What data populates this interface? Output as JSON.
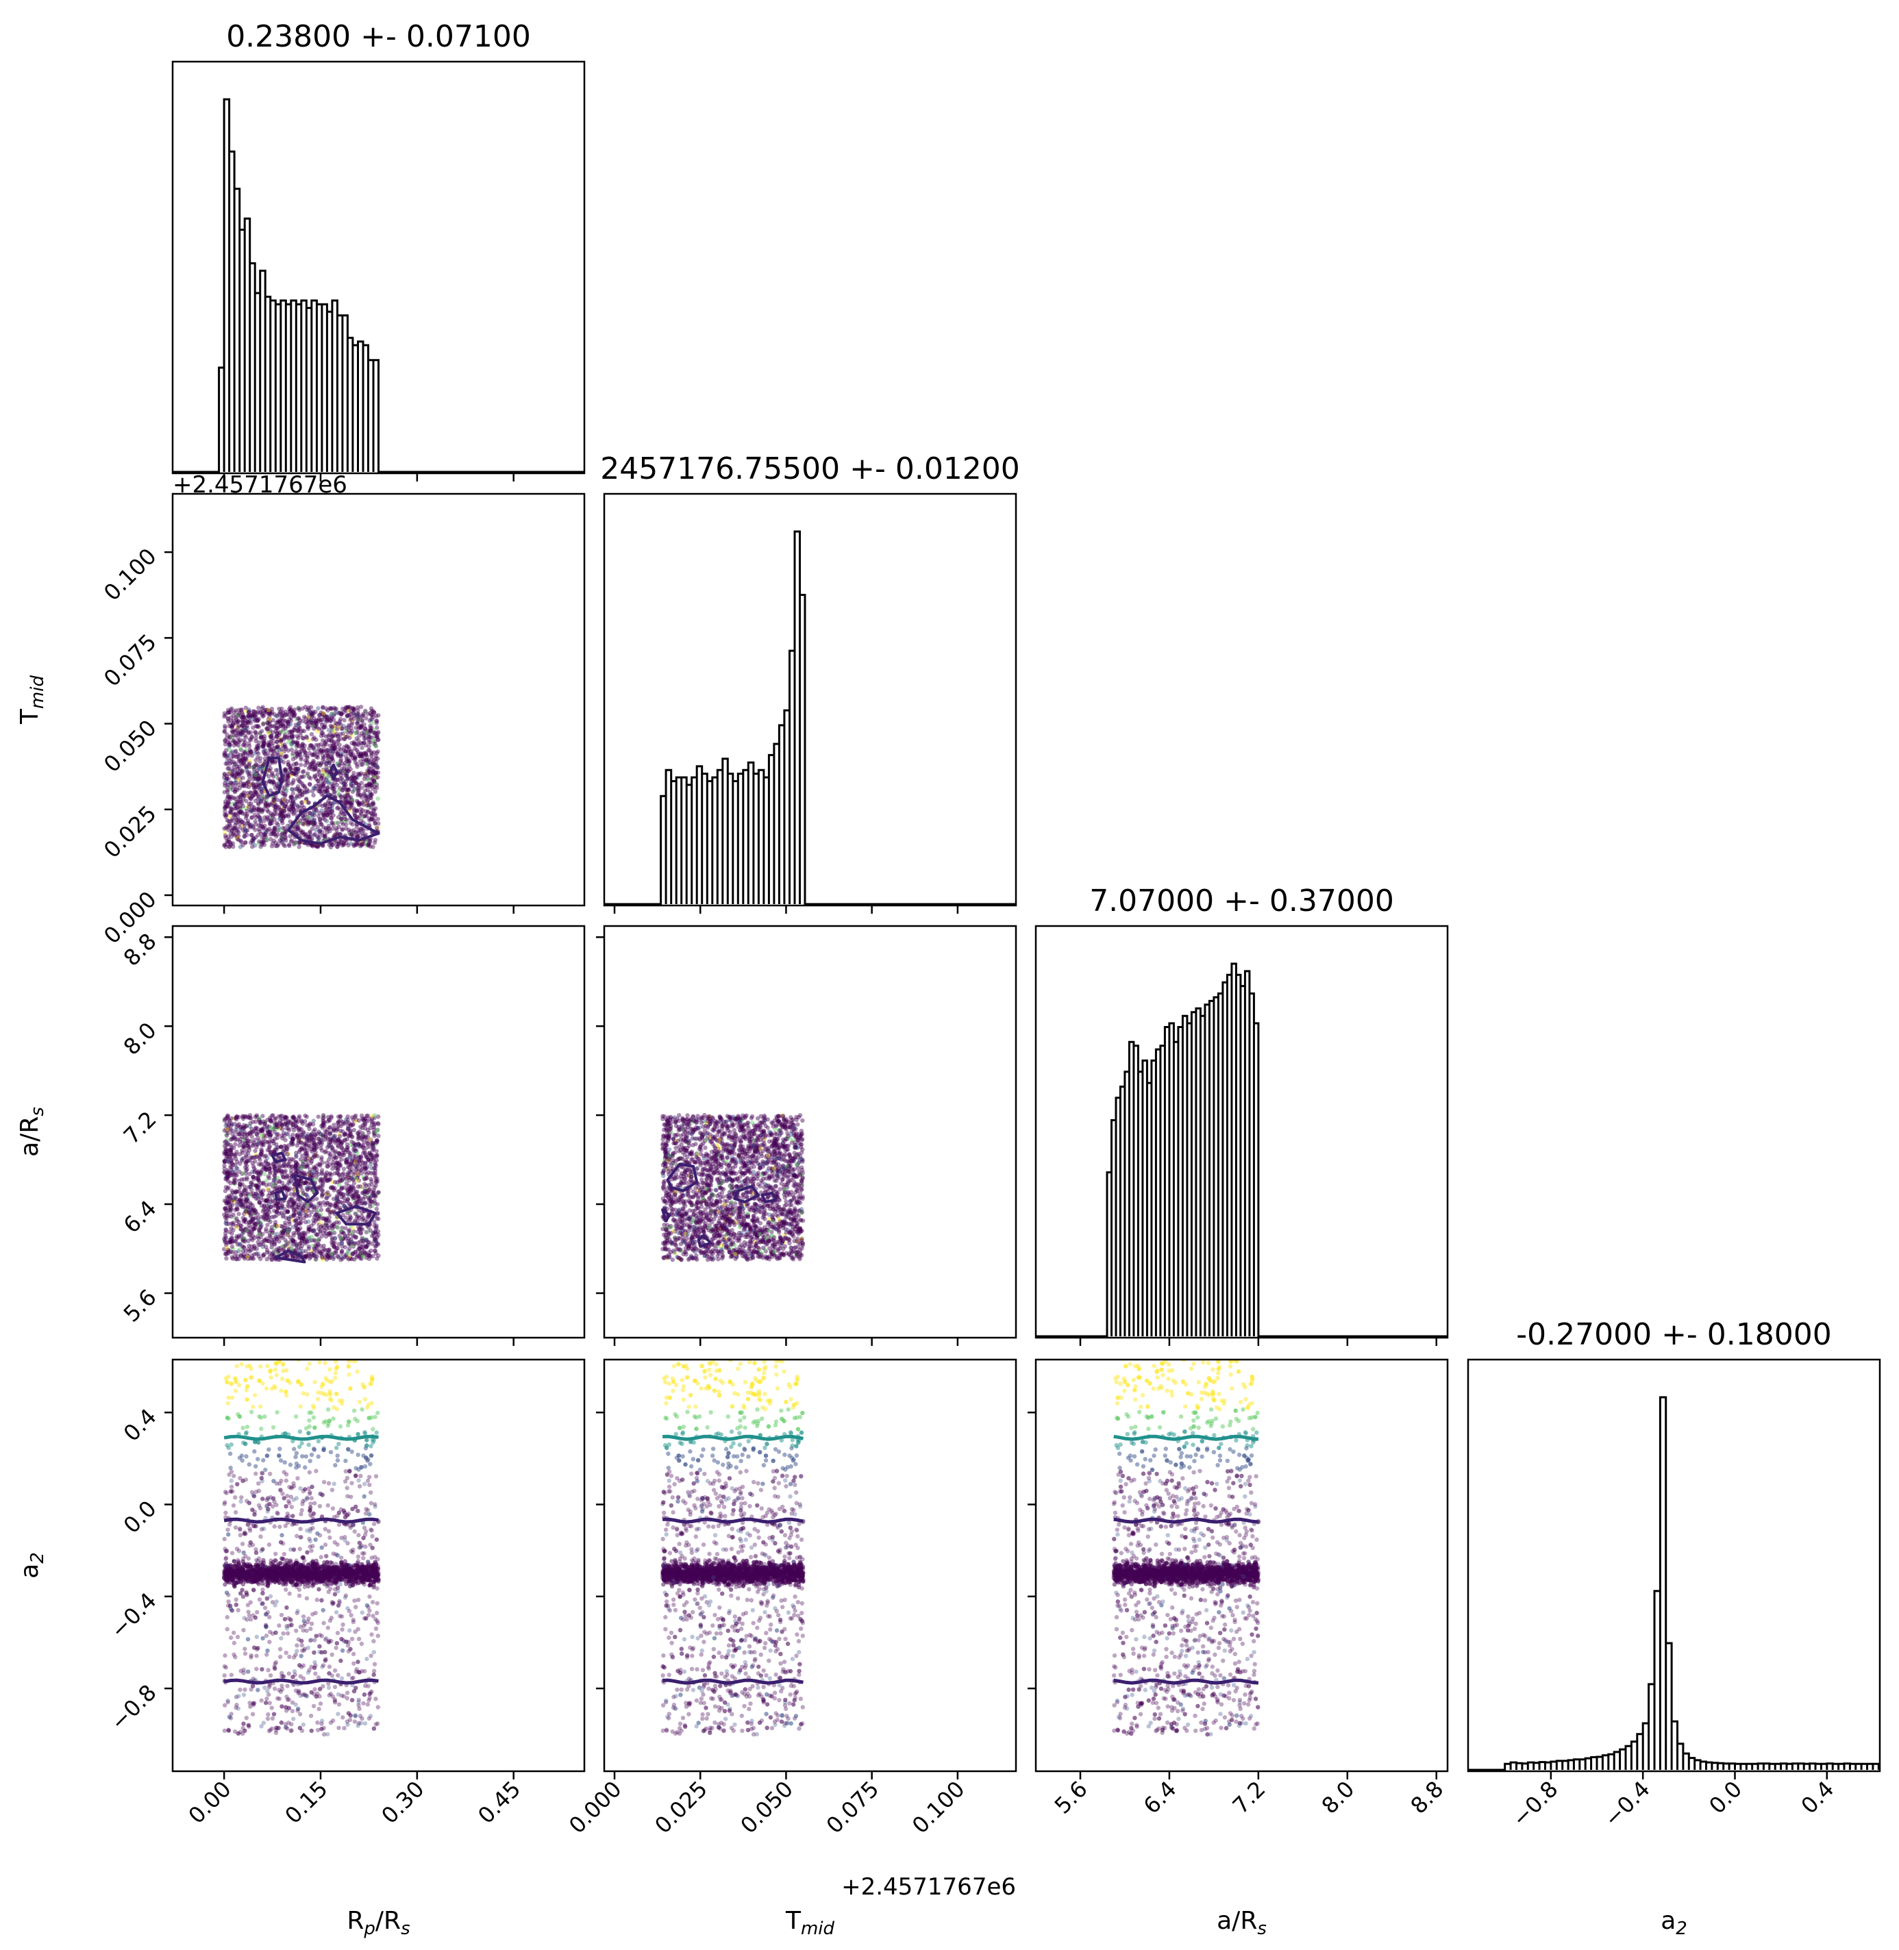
{
  "chart_data": {
    "type": "corner",
    "parameters": [
      {
        "key": "rp",
        "label": "R",
        "label_sub": "p",
        "label_tail": "/R",
        "label_tail_sub": "s",
        "title": "0.23800 +- 0.07100",
        "range": [
          -0.08,
          0.56
        ],
        "ticks": [
          0.0,
          0.15,
          0.3,
          0.45
        ],
        "tick_labels": [
          "0.00",
          "0.15",
          "0.30",
          "0.45"
        ],
        "offset": ""
      },
      {
        "key": "tmid",
        "label": "T",
        "label_sub": "mid",
        "label_tail": "",
        "label_tail_sub": "",
        "title": "2457176.75500 +- 0.01200",
        "range": [
          -0.003,
          0.117
        ],
        "ticks": [
          0.0,
          0.025,
          0.05,
          0.075,
          0.1
        ],
        "tick_labels": [
          "0.000",
          "0.025",
          "0.050",
          "0.075",
          "0.100"
        ],
        "offset": "+2.4571767e6"
      },
      {
        "key": "ars",
        "label": "a/R",
        "label_sub": "s",
        "label_tail": "",
        "label_tail_sub": "",
        "title": "7.07000 +- 0.37000",
        "range": [
          5.2,
          8.9
        ],
        "ticks": [
          5.6,
          6.4,
          7.2,
          8.0,
          8.8
        ],
        "tick_labels": [
          "5.6",
          "6.4",
          "7.2",
          "8.0",
          "8.8"
        ],
        "offset": ""
      },
      {
        "key": "a2",
        "label": "a",
        "label_sub": "2",
        "label_tail": "",
        "label_tail_sub": "",
        "title": "-0.27000 +- 0.18000",
        "range": [
          -1.16,
          0.63
        ],
        "ticks": [
          -0.8,
          -0.4,
          0.0,
          0.4
        ],
        "tick_labels": [
          "−0.8",
          "−0.4",
          "0.0",
          "0.4"
        ],
        "offset": ""
      }
    ],
    "histograms": [
      {
        "param": "rp",
        "bin_width": 0.008,
        "counts": [
          [
            -0.008,
            0.28
          ],
          [
            0.0,
            1.0
          ],
          [
            0.008,
            0.86
          ],
          [
            0.016,
            0.76
          ],
          [
            0.024,
            0.65
          ],
          [
            0.032,
            0.68
          ],
          [
            0.04,
            0.56
          ],
          [
            0.048,
            0.48
          ],
          [
            0.056,
            0.54
          ],
          [
            0.064,
            0.47
          ],
          [
            0.072,
            0.46
          ],
          [
            0.08,
            0.45
          ],
          [
            0.088,
            0.46
          ],
          [
            0.096,
            0.45
          ],
          [
            0.104,
            0.46
          ],
          [
            0.112,
            0.45
          ],
          [
            0.12,
            0.46
          ],
          [
            0.128,
            0.44
          ],
          [
            0.136,
            0.46
          ],
          [
            0.144,
            0.45
          ],
          [
            0.152,
            0.45
          ],
          [
            0.16,
            0.43
          ],
          [
            0.168,
            0.46
          ],
          [
            0.176,
            0.42
          ],
          [
            0.184,
            0.42
          ],
          [
            0.192,
            0.36
          ],
          [
            0.2,
            0.34
          ],
          [
            0.208,
            0.35
          ],
          [
            0.216,
            0.34
          ],
          [
            0.224,
            0.3
          ],
          [
            0.232,
            0.3
          ],
          [
            0.24,
            0.0
          ]
        ]
      },
      {
        "param": "tmid",
        "bin_width": 0.0015,
        "counts": [
          [
            0.0135,
            0.29
          ],
          [
            0.015,
            0.36
          ],
          [
            0.0165,
            0.33
          ],
          [
            0.018,
            0.34
          ],
          [
            0.0195,
            0.34
          ],
          [
            0.021,
            0.32
          ],
          [
            0.0225,
            0.34
          ],
          [
            0.024,
            0.37
          ],
          [
            0.0255,
            0.35
          ],
          [
            0.027,
            0.33
          ],
          [
            0.0285,
            0.34
          ],
          [
            0.03,
            0.36
          ],
          [
            0.0315,
            0.39
          ],
          [
            0.033,
            0.35
          ],
          [
            0.0345,
            0.33
          ],
          [
            0.036,
            0.35
          ],
          [
            0.0375,
            0.36
          ],
          [
            0.039,
            0.38
          ],
          [
            0.0405,
            0.35
          ],
          [
            0.042,
            0.36
          ],
          [
            0.0435,
            0.34
          ],
          [
            0.045,
            0.4
          ],
          [
            0.0465,
            0.43
          ],
          [
            0.048,
            0.48
          ],
          [
            0.0495,
            0.52
          ],
          [
            0.051,
            0.68
          ],
          [
            0.0525,
            1.0
          ],
          [
            0.054,
            0.83
          ]
        ]
      },
      {
        "param": "ars",
        "bin_width": 0.04,
        "counts": [
          [
            5.84,
            0.44
          ],
          [
            5.88,
            0.58
          ],
          [
            5.92,
            0.64
          ],
          [
            5.96,
            0.67
          ],
          [
            6.0,
            0.71
          ],
          [
            6.04,
            0.79
          ],
          [
            6.08,
            0.78
          ],
          [
            6.12,
            0.71
          ],
          [
            6.16,
            0.74
          ],
          [
            6.2,
            0.68
          ],
          [
            6.24,
            0.74
          ],
          [
            6.28,
            0.77
          ],
          [
            6.32,
            0.78
          ],
          [
            6.36,
            0.83
          ],
          [
            6.4,
            0.84
          ],
          [
            6.44,
            0.79
          ],
          [
            6.48,
            0.83
          ],
          [
            6.52,
            0.86
          ],
          [
            6.56,
            0.84
          ],
          [
            6.6,
            0.87
          ],
          [
            6.64,
            0.88
          ],
          [
            6.68,
            0.86
          ],
          [
            6.72,
            0.89
          ],
          [
            6.76,
            0.9
          ],
          [
            6.8,
            0.91
          ],
          [
            6.84,
            0.92
          ],
          [
            6.88,
            0.95
          ],
          [
            6.92,
            0.97
          ],
          [
            6.96,
            1.0
          ],
          [
            7.0,
            0.97
          ],
          [
            7.04,
            0.94
          ],
          [
            7.08,
            0.98
          ],
          [
            7.12,
            0.92
          ],
          [
            7.16,
            0.84
          ]
        ]
      },
      {
        "param": "a2",
        "bin_width": 0.025,
        "counts": [
          [
            -1.0,
            0.016
          ],
          [
            -0.975,
            0.02
          ],
          [
            -0.95,
            0.018
          ],
          [
            -0.925,
            0.017
          ],
          [
            -0.9,
            0.02
          ],
          [
            -0.875,
            0.019
          ],
          [
            -0.85,
            0.021
          ],
          [
            -0.825,
            0.02
          ],
          [
            -0.8,
            0.022
          ],
          [
            -0.775,
            0.024
          ],
          [
            -0.75,
            0.024
          ],
          [
            -0.725,
            0.026
          ],
          [
            -0.7,
            0.028
          ],
          [
            -0.675,
            0.028
          ],
          [
            -0.65,
            0.031
          ],
          [
            -0.625,
            0.034
          ],
          [
            -0.6,
            0.035
          ],
          [
            -0.575,
            0.039
          ],
          [
            -0.55,
            0.042
          ],
          [
            -0.525,
            0.048
          ],
          [
            -0.5,
            0.055
          ],
          [
            -0.475,
            0.064
          ],
          [
            -0.45,
            0.076
          ],
          [
            -0.425,
            0.096
          ],
          [
            -0.4,
            0.125
          ],
          [
            -0.375,
            0.23
          ],
          [
            -0.35,
            0.48
          ],
          [
            -0.325,
            1.0
          ],
          [
            -0.3,
            0.34
          ],
          [
            -0.275,
            0.13
          ],
          [
            -0.25,
            0.07
          ],
          [
            -0.225,
            0.044
          ],
          [
            -0.2,
            0.032
          ],
          [
            -0.175,
            0.026
          ],
          [
            -0.15,
            0.022
          ],
          [
            -0.125,
            0.02
          ],
          [
            -0.1,
            0.019
          ],
          [
            -0.075,
            0.018
          ],
          [
            -0.05,
            0.017
          ],
          [
            -0.025,
            0.017
          ],
          [
            0.0,
            0.016
          ],
          [
            0.025,
            0.016
          ],
          [
            0.05,
            0.016
          ],
          [
            0.075,
            0.016
          ],
          [
            0.1,
            0.017
          ],
          [
            0.125,
            0.017
          ],
          [
            0.15,
            0.016
          ],
          [
            0.175,
            0.016
          ],
          [
            0.2,
            0.017
          ],
          [
            0.225,
            0.016
          ],
          [
            0.25,
            0.017
          ],
          [
            0.275,
            0.017
          ],
          [
            0.3,
            0.016
          ],
          [
            0.325,
            0.017
          ],
          [
            0.35,
            0.016
          ],
          [
            0.375,
            0.016
          ],
          [
            0.4,
            0.017
          ],
          [
            0.425,
            0.016
          ],
          [
            0.45,
            0.016
          ],
          [
            0.475,
            0.017
          ],
          [
            0.5,
            0.016
          ],
          [
            0.525,
            0.016
          ],
          [
            0.55,
            0.016
          ],
          [
            0.575,
            0.016
          ],
          [
            0.6,
            0.016
          ],
          [
            0.625,
            0.016
          ]
        ]
      }
    ],
    "scatter_extents": {
      "rp": [
        0.0,
        0.24
      ],
      "tmid": [
        0.014,
        0.055
      ],
      "ars": [
        5.9,
        7.2
      ],
      "a2_band": [
        -1.0,
        0.63
      ],
      "a2_dense_center": -0.3,
      "a2_dense_halfwidth": 0.035
    },
    "contours": {
      "rp_vs_tmid": [
        {
          "color": "#3b1f6f",
          "points": [
            [
              0.06,
              0.033
            ],
            [
              0.07,
              0.04
            ],
            [
              0.085,
              0.04
            ],
            [
              0.09,
              0.034
            ],
            [
              0.085,
              0.03
            ],
            [
              0.07,
              0.029
            ]
          ]
        },
        {
          "color": "#3b1f6f",
          "points": [
            [
              0.165,
              0.036
            ],
            [
              0.17,
              0.038
            ],
            [
              0.175,
              0.036
            ],
            [
              0.17,
              0.034
            ]
          ]
        },
        {
          "color": "#3b1f6f",
          "points": [
            [
              0.1,
              0.019
            ],
            [
              0.12,
              0.024
            ],
            [
              0.14,
              0.026
            ],
            [
              0.16,
              0.029
            ],
            [
              0.18,
              0.027
            ],
            [
              0.2,
              0.022
            ],
            [
              0.22,
              0.02
            ],
            [
              0.24,
              0.018
            ],
            [
              0.21,
              0.016
            ],
            [
              0.18,
              0.017
            ],
            [
              0.15,
              0.015
            ],
            [
              0.12,
              0.016
            ]
          ]
        }
      ],
      "rp_vs_ars": [
        {
          "color": "#3b1f6f",
          "points": [
            [
              0.11,
              6.66
            ],
            [
              0.135,
              6.62
            ],
            [
              0.145,
              6.5
            ],
            [
              0.13,
              6.42
            ],
            [
              0.115,
              6.48
            ]
          ]
        },
        {
          "color": "#3b1f6f",
          "points": [
            [
              0.175,
              6.32
            ],
            [
              0.205,
              6.38
            ],
            [
              0.235,
              6.32
            ],
            [
              0.225,
              6.22
            ],
            [
              0.19,
              6.22
            ]
          ]
        },
        {
          "color": "#3b1f6f",
          "points": [
            [
              0.075,
              6.84
            ],
            [
              0.09,
              6.86
            ],
            [
              0.095,
              6.8
            ],
            [
              0.08,
              6.78
            ]
          ]
        },
        {
          "color": "#3b1f6f",
          "points": [
            [
              0.08,
              6.5
            ],
            [
              0.09,
              6.52
            ],
            [
              0.095,
              6.45
            ],
            [
              0.082,
              6.44
            ]
          ]
        },
        {
          "color": "#3b1f6f",
          "points": [
            [
              0.08,
              5.92
            ],
            [
              0.1,
              5.98
            ],
            [
              0.12,
              5.93
            ],
            [
              0.125,
              5.88
            ]
          ]
        }
      ],
      "tmid_vs_ars": [
        {
          "color": "#3b1f6f",
          "points": [
            [
              0.0155,
              6.62
            ],
            [
              0.019,
              6.76
            ],
            [
              0.023,
              6.74
            ],
            [
              0.024,
              6.6
            ],
            [
              0.02,
              6.52
            ],
            [
              0.0165,
              6.55
            ]
          ]
        },
        {
          "color": "#3b1f6f",
          "points": [
            [
              0.036,
              6.52
            ],
            [
              0.04,
              6.56
            ],
            [
              0.042,
              6.48
            ],
            [
              0.038,
              6.42
            ],
            [
              0.035,
              6.45
            ]
          ]
        },
        {
          "color": "#3b1f6f",
          "points": [
            [
              0.043,
              6.48
            ],
            [
              0.046,
              6.5
            ],
            [
              0.047,
              6.44
            ],
            [
              0.044,
              6.42
            ]
          ]
        },
        {
          "color": "#3b1f6f",
          "points": [
            [
              0.014,
              6.35
            ],
            [
              0.016,
              6.3
            ],
            [
              0.015,
              6.25
            ]
          ]
        },
        {
          "color": "#3b1f6f",
          "points": [
            [
              0.0245,
              6.08
            ],
            [
              0.026,
              6.12
            ],
            [
              0.028,
              6.05
            ],
            [
              0.025,
              6.02
            ]
          ]
        }
      ]
    },
    "a2_level_lines": [
      {
        "color": "#21918c",
        "y": 0.29
      },
      {
        "color": "#3b1f6f",
        "y": -0.07
      },
      {
        "color": "#3b1f6f",
        "y": -0.77
      }
    ],
    "point_colors": {
      "dense": "#440154",
      "mid": "#3b528b",
      "teal": "#21918c",
      "green": "#5ec962",
      "yellow": "#fde725"
    }
  }
}
